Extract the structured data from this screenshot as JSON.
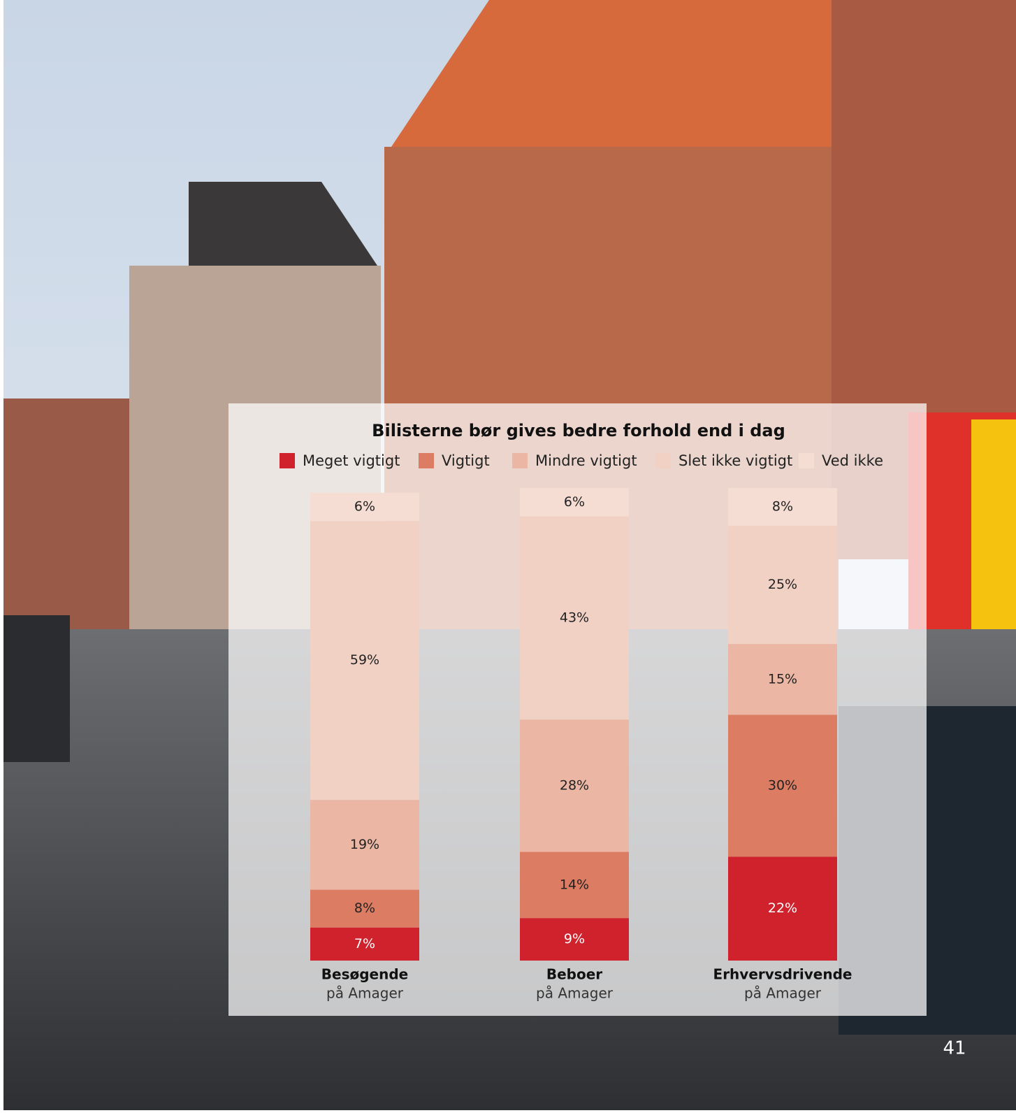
{
  "chart_data": {
    "type": "stacked-bar",
    "title": "Bilisterne bør gives bedre forhold end i dag",
    "categories": [
      "Besøgende",
      "Beboer",
      "Erhvervsdrivende"
    ],
    "category_sublabels": [
      "på Amager",
      "på Amager",
      "på Amager"
    ],
    "ylim": [
      0,
      100
    ],
    "series": [
      {
        "name": "Meget vigtigt",
        "color": "#d0222c",
        "values": [
          7,
          9,
          22
        ],
        "value_labels": [
          "7%",
          "9%",
          "22%"
        ]
      },
      {
        "name": "Vigtigt",
        "color": "#dc7c62",
        "values": [
          8,
          14,
          30
        ],
        "value_labels": [
          "8%",
          "14%",
          "30%"
        ]
      },
      {
        "name": "Mindre vigtigt",
        "color": "#ebb6a3",
        "values": [
          19,
          28,
          15
        ],
        "value_labels": [
          "19%",
          "28%",
          "15%"
        ]
      },
      {
        "name": "Slet ikke vigtigt",
        "color": "#f2d1c5",
        "values": [
          59,
          43,
          25
        ],
        "value_labels": [
          "59%",
          "43%",
          "25%"
        ]
      },
      {
        "name": "Ved ikke",
        "color": "#f6ddd4",
        "values": [
          6,
          6,
          8
        ],
        "value_labels": [
          "6%",
          "6%",
          "8%"
        ]
      }
    ]
  },
  "page_number": "41"
}
